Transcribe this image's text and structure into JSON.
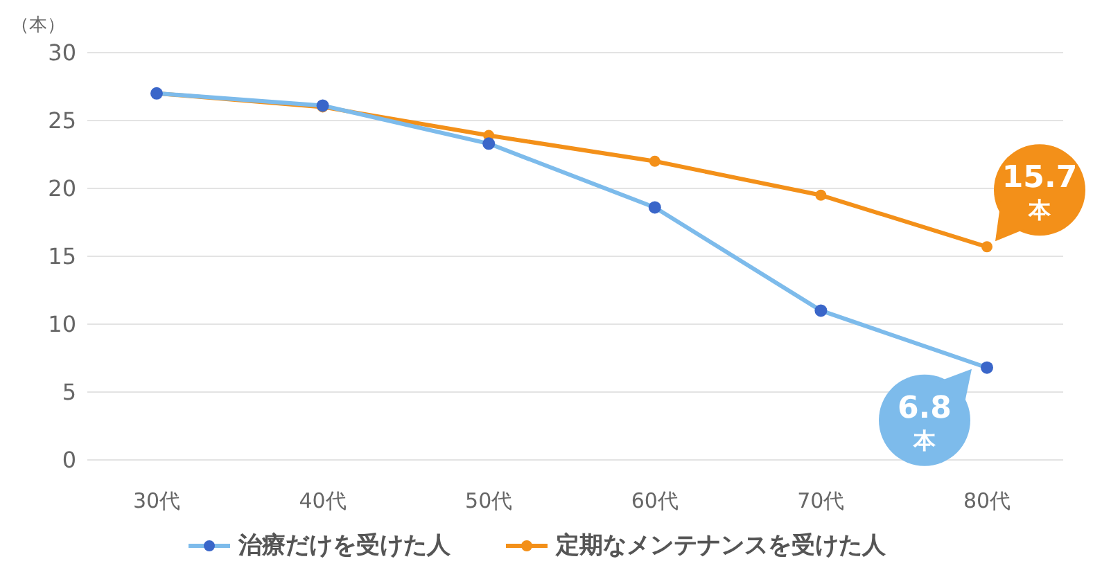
{
  "chart_data": {
    "type": "line",
    "ylabel": "（本）",
    "categories": [
      "30代",
      "40代",
      "50代",
      "60代",
      "70代",
      "80代"
    ],
    "series": [
      {
        "name": "治療だけを受けた人",
        "color": "#7dbbeb",
        "values": [
          27,
          26.1,
          23.3,
          18.6,
          11,
          6.8
        ]
      },
      {
        "name": "定期なメンテナンスを受けた人",
        "color": "#f39019",
        "values": [
          27,
          26,
          23.9,
          22,
          19.5,
          15.7
        ]
      }
    ],
    "ylim": [
      0,
      30
    ],
    "yticks": [
      0,
      5,
      10,
      15,
      20,
      25,
      30
    ],
    "grid": "y",
    "legend": "bottom",
    "marker": "circle",
    "line_style": "solid",
    "annotations": [
      {
        "text": "6.8 本",
        "x": "80代",
        "y": 6.8
      },
      {
        "text": "15.7 本",
        "x": "80代",
        "y": 15.7
      }
    ]
  }
}
